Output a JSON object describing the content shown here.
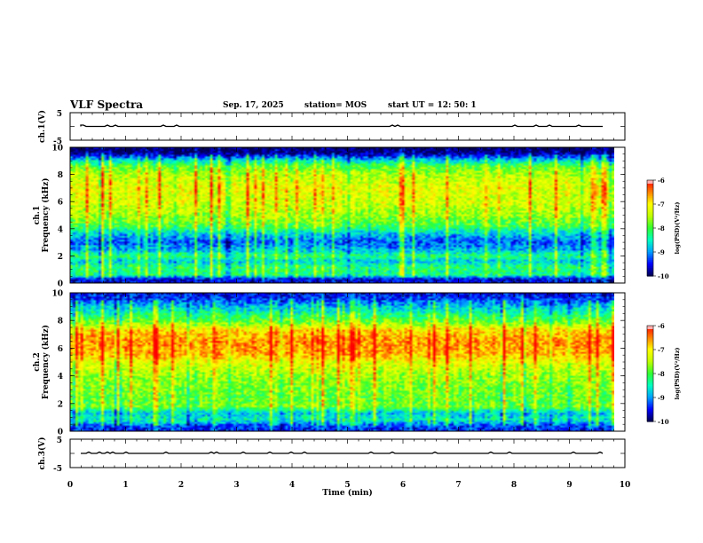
{
  "header": {
    "title": "VLF Spectra",
    "date": "Sep. 17, 2025",
    "station": "station= MOS",
    "start_time": "start  UT  =    12: 50: 1"
  },
  "colors": {
    "colormap": [
      "#000050",
      "#0000ff",
      "#00a0ff",
      "#00ffc0",
      "#30ff30",
      "#c0ff00",
      "#ffff00",
      "#ff8000",
      "#ff0000",
      "#ffffff"
    ],
    "frame": "#000000",
    "background": "#ffffff"
  },
  "chart_data": [
    {
      "type": "line",
      "id": "ch1-voltage",
      "ylabel": "ch.1(V)",
      "ylim": [
        -5,
        5
      ],
      "yticks": [
        "5",
        "-5"
      ],
      "xlim": [
        0,
        10
      ],
      "trace_level": 0
    },
    {
      "type": "heatmap",
      "id": "ch1-spectrogram",
      "ylabel": "ch.1\nFrequency (kHz)",
      "ylim": [
        0,
        10
      ],
      "yticks": [
        "0",
        "2",
        "4",
        "6",
        "8",
        "10"
      ],
      "xlim": [
        0,
        10
      ],
      "data_end_min": 9.8,
      "colorbar": {
        "label": "log(PSD)(V²/Hz)",
        "range": [
          -10,
          -6
        ],
        "ticks": [
          "-6",
          "-7",
          "-8",
          "-9",
          "-10"
        ]
      },
      "profile": [
        {
          "f": 0.0,
          "level": -9.6
        },
        {
          "f": 0.3,
          "level": -9.6
        },
        {
          "f": 0.6,
          "level": -8.3
        },
        {
          "f": 1.2,
          "level": -8.2
        },
        {
          "f": 1.6,
          "level": -8.8
        },
        {
          "f": 2.0,
          "level": -8.2
        },
        {
          "f": 2.4,
          "level": -8.8
        },
        {
          "f": 3.0,
          "level": -9.2
        },
        {
          "f": 3.6,
          "level": -8.8
        },
        {
          "f": 4.2,
          "level": -8.0
        },
        {
          "f": 5.0,
          "level": -7.6
        },
        {
          "f": 6.0,
          "level": -7.3
        },
        {
          "f": 7.0,
          "level": -7.2
        },
        {
          "f": 8.0,
          "level": -7.5
        },
        {
          "f": 8.6,
          "level": -7.9
        },
        {
          "f": 9.0,
          "level": -8.6
        },
        {
          "f": 9.3,
          "level": -9.3
        },
        {
          "f": 9.6,
          "level": -9.9
        },
        {
          "f": 10.0,
          "level": -10.0
        }
      ]
    },
    {
      "type": "heatmap",
      "id": "ch2-spectrogram",
      "ylabel": "ch.2\nFrequency (kHz)",
      "ylim": [
        0,
        10
      ],
      "yticks": [
        "0",
        "2",
        "4",
        "6",
        "8",
        "10"
      ],
      "xlim": [
        0,
        10
      ],
      "data_end_min": 9.8,
      "colorbar": {
        "label": "log(PSD)(V²/Hz)",
        "range": [
          -10,
          -6
        ],
        "ticks": [
          "-6",
          "-7",
          "-8",
          "-9",
          "-10"
        ]
      },
      "profile": [
        {
          "f": 0.0,
          "level": -9.5
        },
        {
          "f": 0.4,
          "level": -9.3
        },
        {
          "f": 0.8,
          "level": -8.5
        },
        {
          "f": 1.3,
          "level": -8.8
        },
        {
          "f": 1.8,
          "level": -7.8
        },
        {
          "f": 2.2,
          "level": -7.9
        },
        {
          "f": 3.0,
          "level": -7.8
        },
        {
          "f": 4.0,
          "level": -7.6
        },
        {
          "f": 5.0,
          "level": -7.2
        },
        {
          "f": 5.6,
          "level": -6.7
        },
        {
          "f": 6.5,
          "level": -6.6
        },
        {
          "f": 7.3,
          "level": -6.9
        },
        {
          "f": 7.8,
          "level": -7.7
        },
        {
          "f": 8.3,
          "level": -8.2
        },
        {
          "f": 9.0,
          "level": -8.8
        },
        {
          "f": 9.5,
          "level": -9.3
        },
        {
          "f": 10.0,
          "level": -9.6
        }
      ]
    },
    {
      "type": "line",
      "id": "ch3-voltage",
      "ylabel": "ch.3(V)",
      "ylim": [
        -5,
        5
      ],
      "yticks": [
        "5",
        "-5"
      ],
      "xlim": [
        0,
        10
      ],
      "trace_level": 0
    }
  ],
  "x_axis": {
    "label": "Time  (min)",
    "ticks": [
      "0",
      "1",
      "2",
      "3",
      "4",
      "5",
      "6",
      "7",
      "8",
      "9",
      "10"
    ]
  }
}
